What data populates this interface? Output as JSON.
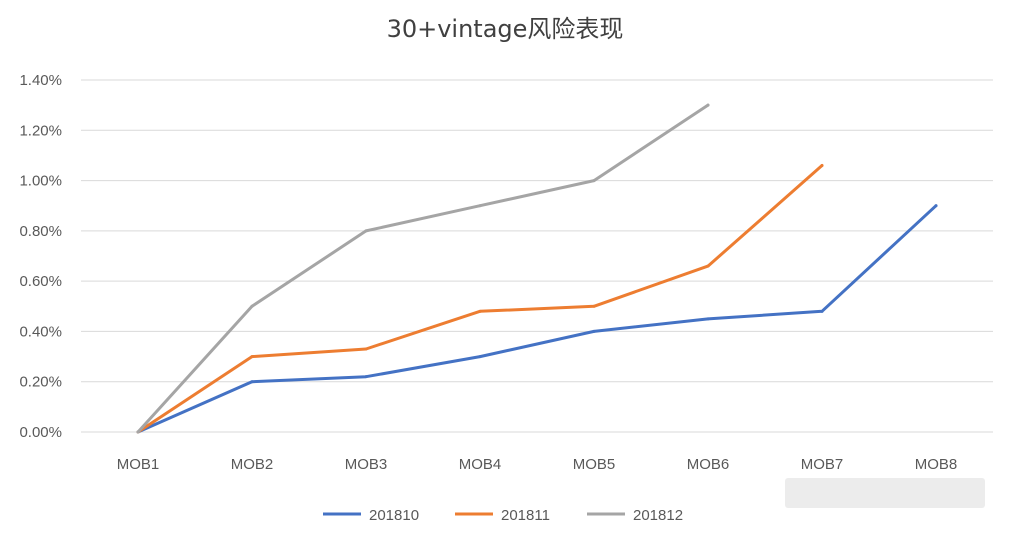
{
  "chart_data": {
    "type": "line",
    "title": "30+vintage风险表现",
    "xlabel": "",
    "ylabel": "",
    "categories": [
      "MOB1",
      "MOB2",
      "MOB3",
      "MOB4",
      "MOB5",
      "MOB6",
      "MOB7",
      "MOB8"
    ],
    "ylim": [
      0,
      0.014
    ],
    "yticks": [
      0,
      0.002,
      0.004,
      0.006,
      0.008,
      0.01,
      0.012,
      0.014
    ],
    "ytick_labels": [
      "0.00%",
      "0.20%",
      "0.40%",
      "0.60%",
      "0.80%",
      "1.00%",
      "1.20%",
      "1.40%"
    ],
    "grid": true,
    "legend_position": "bottom",
    "series": [
      {
        "name": "201810",
        "color": "#4472c4",
        "values": [
          0,
          0.002,
          0.0022,
          0.003,
          0.004,
          0.0045,
          0.0048,
          0.009
        ]
      },
      {
        "name": "201811",
        "color": "#ed7d31",
        "values": [
          0,
          0.003,
          0.0033,
          0.0048,
          0.005,
          0.0066,
          0.0106,
          null
        ]
      },
      {
        "name": "201812",
        "color": "#a5a5a5",
        "values": [
          0,
          0.005,
          0.008,
          0.009,
          0.01,
          0.013,
          null,
          null
        ]
      }
    ]
  }
}
